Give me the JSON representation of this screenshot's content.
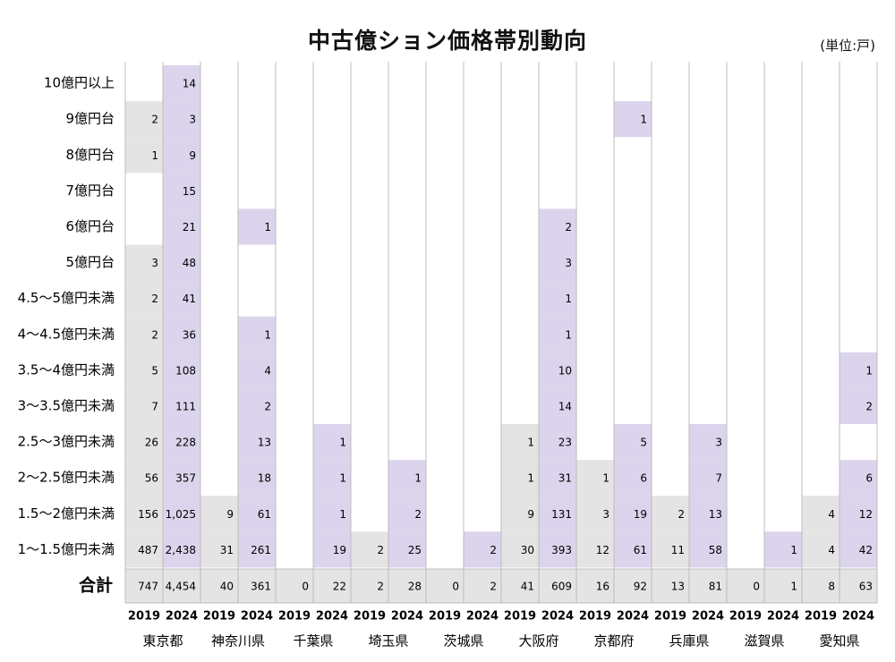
{
  "chart_data": {
    "type": "table",
    "title": "中古億ション価格帯別動向",
    "unit": "(単位:戸)",
    "years": [
      "2019",
      "2024"
    ],
    "prefectures": [
      "東京都",
      "神奈川県",
      "千葉県",
      "埼玉県",
      "茨城県",
      "大阪府",
      "京都府",
      "兵庫県",
      "滋賀県",
      "愛知県"
    ],
    "price_bands": [
      "10億円以上",
      "9億円台",
      "8億円台",
      "7億円台",
      "6億円台",
      "5億円台",
      "4.5～5億円未満",
      "4～4.5億円未満",
      "3.5～4億円未満",
      "3～3.5億円未満",
      "2.5～3億円未満",
      "2～2.5億円未満",
      "1.5～2億円未満",
      "1～1.5億円未満"
    ],
    "values": [
      [
        null,
        "14",
        null,
        null,
        null,
        null,
        null,
        null,
        null,
        null,
        null,
        null,
        null,
        null,
        null,
        null,
        null,
        null,
        null,
        null
      ],
      [
        "2",
        "3",
        null,
        null,
        null,
        null,
        null,
        null,
        null,
        null,
        null,
        null,
        null,
        "1",
        null,
        null,
        null,
        null,
        null,
        null
      ],
      [
        "1",
        "9",
        null,
        null,
        null,
        null,
        null,
        null,
        null,
        null,
        null,
        null,
        null,
        null,
        null,
        null,
        null,
        null,
        null,
        null
      ],
      [
        null,
        "15",
        null,
        null,
        null,
        null,
        null,
        null,
        null,
        null,
        null,
        null,
        null,
        null,
        null,
        null,
        null,
        null,
        null,
        null
      ],
      [
        null,
        "21",
        null,
        "1",
        null,
        null,
        null,
        null,
        null,
        null,
        null,
        "2",
        null,
        null,
        null,
        null,
        null,
        null,
        null,
        null
      ],
      [
        "3",
        "48",
        null,
        null,
        null,
        null,
        null,
        null,
        null,
        null,
        null,
        "3",
        null,
        null,
        null,
        null,
        null,
        null,
        null,
        null
      ],
      [
        "2",
        "41",
        null,
        null,
        null,
        null,
        null,
        null,
        null,
        null,
        null,
        "1",
        null,
        null,
        null,
        null,
        null,
        null,
        null,
        null
      ],
      [
        "2",
        "36",
        null,
        "1",
        null,
        null,
        null,
        null,
        null,
        null,
        null,
        "1",
        null,
        null,
        null,
        null,
        null,
        null,
        null,
        null
      ],
      [
        "5",
        "108",
        null,
        "4",
        null,
        null,
        null,
        null,
        null,
        null,
        null,
        "10",
        null,
        null,
        null,
        null,
        null,
        null,
        null,
        "1"
      ],
      [
        "7",
        "111",
        null,
        "2",
        null,
        null,
        null,
        null,
        null,
        null,
        null,
        "14",
        null,
        null,
        null,
        null,
        null,
        null,
        null,
        "2"
      ],
      [
        "26",
        "228",
        null,
        "13",
        null,
        "1",
        null,
        null,
        null,
        null,
        "1",
        "23",
        null,
        "5",
        null,
        "3",
        null,
        null,
        null,
        null
      ],
      [
        "56",
        "357",
        null,
        "18",
        null,
        "1",
        null,
        "1",
        null,
        null,
        "1",
        "31",
        "1",
        "6",
        null,
        "7",
        null,
        null,
        null,
        "6"
      ],
      [
        "156",
        "1,025",
        "9",
        "61",
        null,
        "1",
        null,
        "2",
        null,
        null,
        "9",
        "131",
        "3",
        "19",
        "2",
        "13",
        null,
        null,
        "4",
        "12"
      ],
      [
        "487",
        "2,438",
        "31",
        "261",
        null,
        "19",
        "2",
        "25",
        null,
        "2",
        "30",
        "393",
        "12",
        "61",
        "11",
        "58",
        null,
        "1",
        "4",
        "42"
      ]
    ],
    "shaded": [
      [
        0,
        1,
        0,
        0,
        0,
        0,
        0,
        0,
        0,
        0,
        0,
        0,
        0,
        0,
        0,
        0,
        0,
        0,
        0,
        0
      ],
      [
        1,
        1,
        0,
        0,
        0,
        0,
        0,
        0,
        0,
        0,
        0,
        0,
        0,
        1,
        0,
        0,
        0,
        0,
        0,
        0
      ],
      [
        1,
        1,
        0,
        0,
        0,
        0,
        0,
        0,
        0,
        0,
        0,
        0,
        0,
        0,
        0,
        0,
        0,
        0,
        0,
        0
      ],
      [
        0,
        1,
        0,
        0,
        0,
        0,
        0,
        0,
        0,
        0,
        0,
        0,
        0,
        0,
        0,
        0,
        0,
        0,
        0,
        0
      ],
      [
        0,
        1,
        0,
        1,
        0,
        0,
        0,
        0,
        0,
        0,
        0,
        1,
        0,
        0,
        0,
        0,
        0,
        0,
        0,
        0
      ],
      [
        1,
        1,
        0,
        0,
        0,
        0,
        0,
        0,
        0,
        0,
        0,
        1,
        0,
        0,
        0,
        0,
        0,
        0,
        0,
        0
      ],
      [
        1,
        1,
        0,
        0,
        0,
        0,
        0,
        0,
        0,
        0,
        0,
        1,
        0,
        0,
        0,
        0,
        0,
        0,
        0,
        0
      ],
      [
        1,
        1,
        0,
        1,
        0,
        0,
        0,
        0,
        0,
        0,
        0,
        1,
        0,
        0,
        0,
        0,
        0,
        0,
        0,
        0
      ],
      [
        1,
        1,
        0,
        1,
        0,
        0,
        0,
        0,
        0,
        0,
        0,
        1,
        0,
        0,
        0,
        0,
        0,
        0,
        0,
        1
      ],
      [
        1,
        1,
        0,
        1,
        0,
        0,
        0,
        0,
        0,
        0,
        0,
        1,
        0,
        0,
        0,
        0,
        0,
        0,
        0,
        1
      ],
      [
        1,
        1,
        0,
        1,
        0,
        1,
        0,
        0,
        0,
        0,
        1,
        1,
        0,
        1,
        0,
        1,
        0,
        0,
        0,
        0
      ],
      [
        1,
        1,
        0,
        1,
        0,
        1,
        0,
        1,
        0,
        0,
        1,
        1,
        1,
        1,
        0,
        1,
        0,
        0,
        0,
        1
      ],
      [
        1,
        1,
        1,
        1,
        0,
        1,
        0,
        1,
        0,
        0,
        1,
        1,
        1,
        1,
        1,
        1,
        0,
        0,
        1,
        1
      ],
      [
        1,
        1,
        1,
        1,
        0,
        1,
        1,
        1,
        0,
        1,
        1,
        1,
        1,
        1,
        1,
        1,
        0,
        1,
        1,
        1
      ]
    ],
    "total_label": "合計",
    "totals": [
      "747",
      "4,454",
      "40",
      "361",
      "0",
      "22",
      "2",
      "28",
      "0",
      "2",
      "41",
      "609",
      "16",
      "92",
      "13",
      "81",
      "0",
      "1",
      "8",
      "63"
    ],
    "colors": {
      "col_2019": "#e4e4e4",
      "col_2024": "#dcd3ec",
      "total_row": "#e4e4e4",
      "gridline": "#bcbcbc"
    }
  }
}
